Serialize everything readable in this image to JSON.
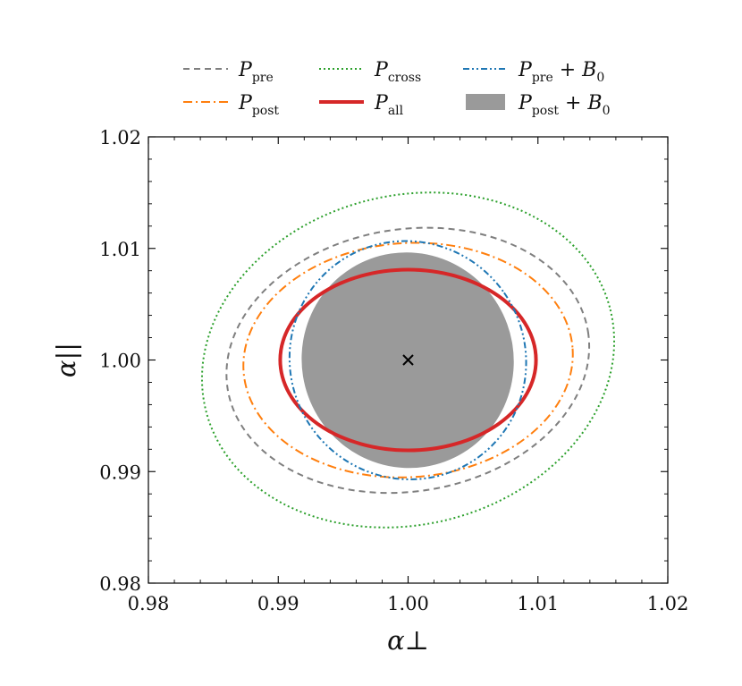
{
  "chart_data": {
    "type": "contour",
    "xlabel": "α⊥",
    "ylabel": "α||",
    "xlim": [
      0.98,
      1.02
    ],
    "ylim": [
      0.98,
      1.02
    ],
    "xticks": [
      0.98,
      0.99,
      1.0,
      1.01,
      1.02
    ],
    "yticks": [
      0.98,
      0.99,
      1.0,
      1.01,
      1.02
    ],
    "xtick_labels": [
      "0.98",
      "0.99",
      "1.00",
      "1.01",
      "1.02"
    ],
    "ytick_labels": [
      "0.98",
      "0.99",
      "1.00",
      "1.01",
      "1.02"
    ],
    "center_marker": {
      "x": 1.0,
      "y": 1.0,
      "symbol": "×"
    },
    "legend_position": "top",
    "legend_columns": 3,
    "series": [
      {
        "name": "P_pre",
        "label_main": "P",
        "label_sub": "pre",
        "label_suffix": "",
        "color": "#7f7f7f",
        "style": "dashed",
        "contour": {
          "cx": 0.99998,
          "cy": 0.99997,
          "rx": 0.01405,
          "ry": 0.01175,
          "angle_deg": 9
        }
      },
      {
        "name": "P_post",
        "label_main": "P",
        "label_sub": "post",
        "label_suffix": "",
        "color": "#ff7f0e",
        "style": "dashdot",
        "contour": {
          "cx": 1.0,
          "cy": 0.99999,
          "rx": 0.0127,
          "ry": 0.01049,
          "angle_deg": 4
        }
      },
      {
        "name": "P_cross",
        "label_main": "P",
        "label_sub": "cross",
        "label_suffix": "",
        "color": "#2ca02c",
        "style": "dotted",
        "contour": {
          "cx": 1.0,
          "cy": 1.0,
          "rx": 0.01605,
          "ry": 0.01475,
          "angle_deg": 14
        }
      },
      {
        "name": "P_all",
        "label_main": "P",
        "label_sub": "all",
        "label_suffix": "",
        "color": "#d62728",
        "style": "solid-thick",
        "contour": {
          "cx": 1.0,
          "cy": 1.0,
          "rx": 0.00985,
          "ry": 0.0081,
          "angle_deg": 0
        }
      },
      {
        "name": "P_pre + B_0",
        "label_main": "P",
        "label_sub": "pre",
        "label_suffix": "+ B",
        "label_suffix_sub": "0",
        "color": "#1f77b4",
        "style": "dashdotdot",
        "contour": {
          "cx": 0.99998,
          "cy": 0.99998,
          "rx": 0.00905,
          "ry": 0.01075,
          "angle_deg": 35
        }
      },
      {
        "name": "P_post + B_0",
        "label_main": "P",
        "label_sub": "post",
        "label_suffix": "+ B",
        "label_suffix_sub": "0",
        "color": "#9a9a9a",
        "style": "filled",
        "contour": {
          "cx": 0.99997,
          "cy": 0.99998,
          "rx": 0.00815,
          "ry": 0.00968,
          "angle_deg": 20
        }
      }
    ]
  }
}
